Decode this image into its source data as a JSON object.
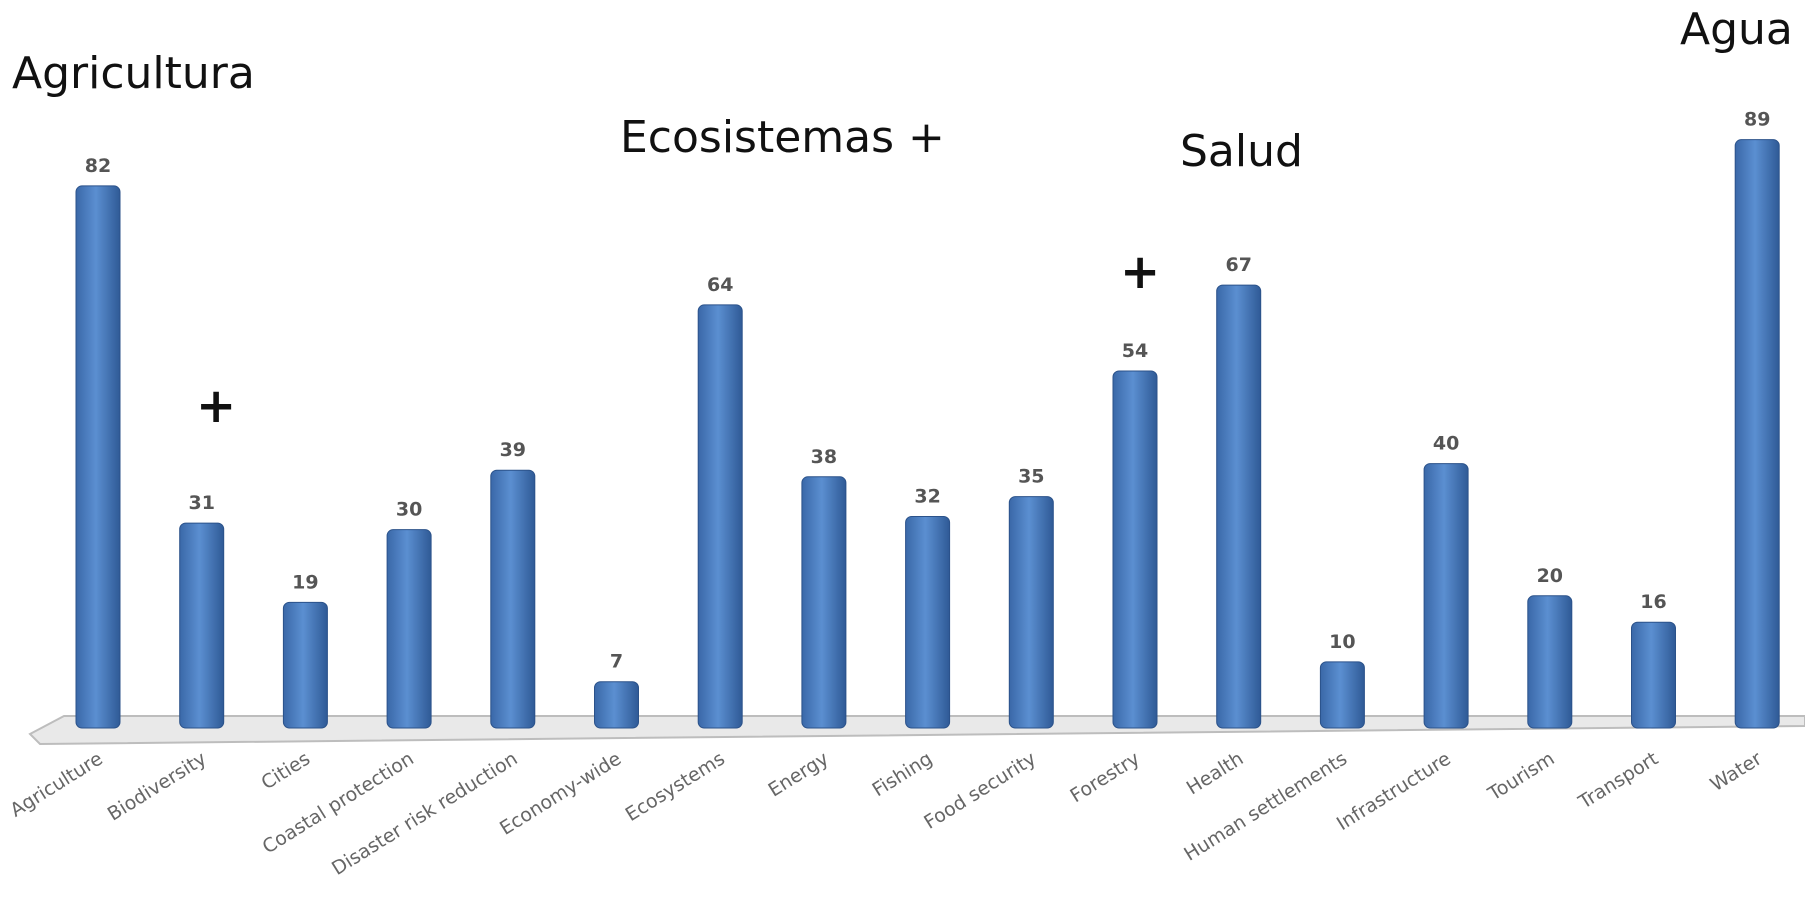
{
  "chart_data": {
    "type": "bar",
    "categories": [
      "Agriculture",
      "Biodiversity",
      "Cities",
      "Coastal protection",
      "Disaster risk reduction",
      "Economy-wide",
      "Ecosystems",
      "Energy",
      "Fishing",
      "Food security",
      "Forestry",
      "Health",
      "Human settlements",
      "Infrastructure",
      "Tourism",
      "Transport",
      "Water"
    ],
    "values": [
      82,
      31,
      19,
      30,
      39,
      7,
      64,
      38,
      32,
      35,
      54,
      67,
      10,
      40,
      20,
      16,
      89
    ],
    "ylim": [
      0,
      95
    ],
    "grid": false,
    "legend": "none",
    "bar_color": "#4a7fc1"
  },
  "annotations": {
    "agricultura": "Agricultura",
    "ecosistemas": "Ecosistemas +",
    "salud": "Salud",
    "agua": "Agua",
    "plus": "+"
  }
}
